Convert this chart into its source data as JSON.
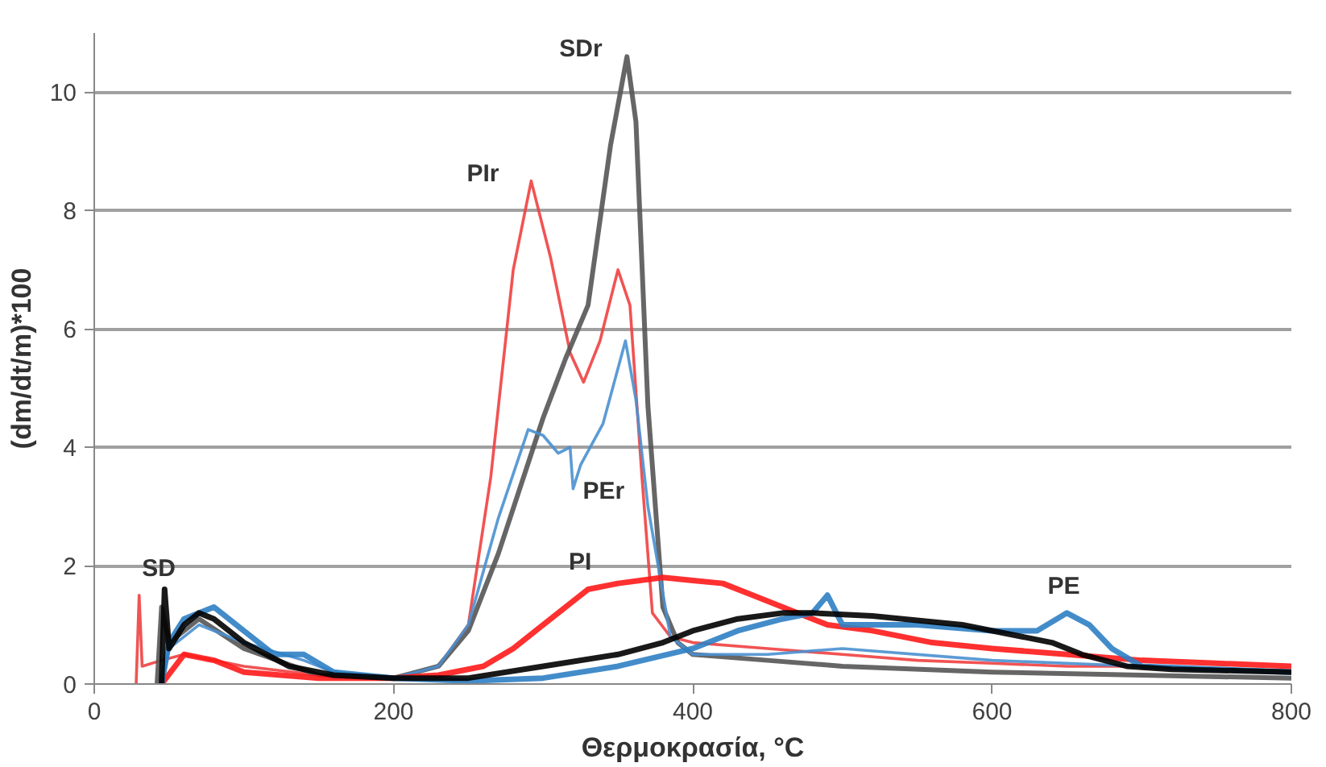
{
  "chart_data": {
    "type": "line",
    "xlabel": "Θερμοκρασία, °C",
    "ylabel": "(dm/dt/m)*100",
    "xlim": [
      0,
      800
    ],
    "ylim": [
      0,
      11
    ],
    "xticks": [
      0,
      200,
      400,
      600,
      800
    ],
    "yticks": [
      0,
      2,
      4,
      6,
      8,
      10
    ],
    "grid": "y",
    "marker": "none",
    "line_style": "solid",
    "series": [
      {
        "name": "PIr",
        "color": "#f04040",
        "x": [
          28,
          30,
          32,
          45,
          60,
          80,
          100,
          150,
          200,
          230,
          250,
          265,
          280,
          292,
          305,
          318,
          327,
          338,
          350,
          358,
          366,
          373,
          385,
          400,
          450,
          500,
          550,
          600,
          650,
          700,
          750,
          800
        ],
        "values": [
          0,
          1.5,
          0.3,
          0.4,
          0.5,
          0.4,
          0.3,
          0.15,
          0.1,
          0.3,
          1.0,
          3.5,
          7.0,
          8.5,
          7.2,
          5.6,
          5.1,
          5.8,
          7.0,
          6.4,
          3.5,
          1.2,
          0.8,
          0.7,
          0.6,
          0.5,
          0.4,
          0.35,
          0.3,
          0.3,
          0.25,
          0.2
        ]
      },
      {
        "name": "SDr",
        "color": "#555555",
        "x": [
          42,
          45,
          50,
          70,
          100,
          150,
          200,
          230,
          250,
          270,
          300,
          315,
          330,
          345,
          356,
          362,
          370,
          380,
          390,
          400,
          450,
          500,
          600,
          700,
          800
        ],
        "values": [
          0,
          1.3,
          0.7,
          1.1,
          0.6,
          0.15,
          0.1,
          0.3,
          0.9,
          2.2,
          4.5,
          5.5,
          6.4,
          9.1,
          10.6,
          9.5,
          4.7,
          1.3,
          0.7,
          0.5,
          0.4,
          0.3,
          0.2,
          0.15,
          0.1
        ]
      },
      {
        "name": "PEr",
        "color": "#4a90d0",
        "x": [
          45,
          50,
          70,
          100,
          140,
          160,
          200,
          230,
          250,
          270,
          290,
          300,
          310,
          318,
          320,
          325,
          340,
          355,
          362,
          370,
          385,
          400,
          450,
          500,
          600,
          700,
          800
        ],
        "values": [
          0,
          0.6,
          1.0,
          0.7,
          0.4,
          0.2,
          0.1,
          0.3,
          1.0,
          2.8,
          4.3,
          4.2,
          3.9,
          4.0,
          3.3,
          3.7,
          4.4,
          5.8,
          4.8,
          3.0,
          0.8,
          0.5,
          0.5,
          0.6,
          0.4,
          0.3,
          0.2
        ]
      },
      {
        "name": "PI",
        "color": "#ff1a1a",
        "x": [
          45,
          60,
          80,
          100,
          150,
          200,
          230,
          260,
          280,
          300,
          315,
          330,
          350,
          380,
          400,
          420,
          440,
          460,
          490,
          520,
          560,
          600,
          650,
          700,
          750,
          800
        ],
        "values": [
          0,
          0.5,
          0.4,
          0.2,
          0.1,
          0.1,
          0.15,
          0.3,
          0.6,
          1.0,
          1.3,
          1.6,
          1.7,
          1.8,
          1.75,
          1.7,
          1.5,
          1.3,
          1.0,
          0.9,
          0.7,
          0.6,
          0.5,
          0.4,
          0.35,
          0.3
        ]
      },
      {
        "name": "PE",
        "color": "#2f7fc4",
        "x": [
          45,
          50,
          60,
          80,
          100,
          120,
          140,
          160,
          200,
          250,
          300,
          350,
          400,
          430,
          460,
          480,
          490,
          500,
          550,
          600,
          630,
          650,
          665,
          680,
          700,
          750,
          800
        ],
        "values": [
          0,
          0.7,
          1.1,
          1.3,
          0.9,
          0.5,
          0.5,
          0.2,
          0.1,
          0.05,
          0.1,
          0.3,
          0.6,
          0.9,
          1.1,
          1.2,
          1.5,
          1.0,
          1.0,
          0.9,
          0.9,
          1.2,
          1.0,
          0.6,
          0.3,
          0.25,
          0.2
        ]
      },
      {
        "name": "SD",
        "color": "#000000",
        "x": [
          45,
          47,
          50,
          60,
          70,
          80,
          100,
          130,
          160,
          200,
          250,
          300,
          350,
          380,
          400,
          430,
          460,
          480,
          520,
          580,
          620,
          640,
          660,
          690,
          720,
          800
        ],
        "values": [
          0,
          1.6,
          0.6,
          1.0,
          1.2,
          1.1,
          0.7,
          0.3,
          0.15,
          0.1,
          0.1,
          0.3,
          0.5,
          0.7,
          0.9,
          1.1,
          1.2,
          1.2,
          1.15,
          1.0,
          0.8,
          0.7,
          0.5,
          0.3,
          0.25,
          0.2
        ]
      }
    ]
  }
}
